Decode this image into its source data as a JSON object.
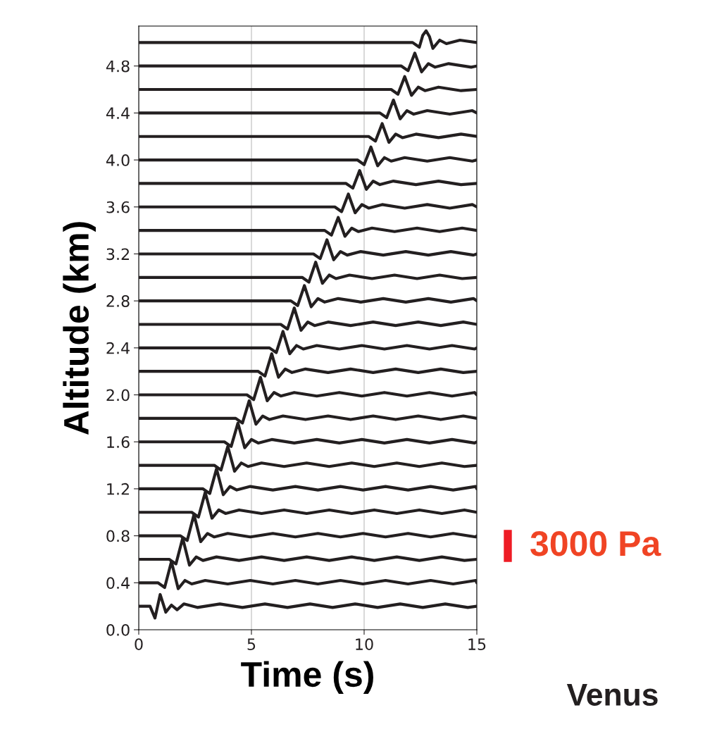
{
  "chart_data": {
    "type": "line",
    "xlabel": "Time (s)",
    "ylabel": "Altitude (km)",
    "xlim": [
      0,
      15
    ],
    "xticks": [
      0,
      5,
      10,
      15
    ],
    "ylim": [
      0,
      5.14
    ],
    "yticks": [
      {
        "value": 0,
        "label": "0.0"
      },
      0.4,
      0.8,
      1.2,
      1.6,
      {
        "value": 2,
        "label": "2.0"
      },
      2.4,
      2.8,
      3.2,
      3.6,
      {
        "value": 4,
        "label": "4.0"
      },
      4.4,
      4.8
    ],
    "grid": "x",
    "legend": false,
    "marker": "none",
    "line_style": "solid",
    "annotations": [
      "3000 Pa",
      "Venus"
    ],
    "series": [
      {
        "color": "#231f20",
        "x": [
          0,
          0.5,
          0.72,
          0.95,
          1.2,
          1.45,
          1.7,
          2.0,
          2.6,
          3.6,
          4.6,
          5.6,
          6.6,
          7.6,
          8.6,
          9.6,
          10.6,
          11.6,
          12.6,
          13.6,
          14.6,
          15
        ],
        "values": [
          0.2,
          0.2,
          0.1,
          0.3,
          0.15,
          0.21,
          0.17,
          0.22,
          0.19,
          0.22,
          0.19,
          0.22,
          0.19,
          0.22,
          0.19,
          0.22,
          0.19,
          0.22,
          0.19,
          0.22,
          0.19,
          0.2
        ]
      },
      {
        "color": "#231f20",
        "x": [
          0,
          0.85,
          1.15,
          1.45,
          1.75,
          2.05,
          2.35,
          2.95,
          3.95,
          4.95,
          5.95,
          6.95,
          7.95,
          8.95,
          9.95,
          10.95,
          11.95,
          12.95,
          13.95,
          14.95,
          15
        ],
        "values": [
          0.4,
          0.4,
          0.36,
          0.58,
          0.35,
          0.42,
          0.39,
          0.42,
          0.39,
          0.42,
          0.39,
          0.42,
          0.39,
          0.42,
          0.39,
          0.42,
          0.39,
          0.42,
          0.39,
          0.42,
          0.4
        ]
      },
      {
        "color": "#231f20",
        "x": [
          0,
          1.35,
          1.65,
          1.95,
          2.25,
          2.55,
          2.85,
          3.45,
          4.45,
          5.45,
          6.45,
          7.45,
          8.45,
          9.45,
          10.45,
          11.45,
          12.45,
          13.45,
          14.45,
          15
        ],
        "values": [
          0.6,
          0.6,
          0.56,
          0.78,
          0.55,
          0.62,
          0.59,
          0.62,
          0.59,
          0.62,
          0.59,
          0.62,
          0.59,
          0.62,
          0.59,
          0.62,
          0.59,
          0.62,
          0.59,
          0.6
        ]
      },
      {
        "color": "#231f20",
        "x": [
          0,
          1.85,
          2.15,
          2.45,
          2.75,
          3.05,
          3.35,
          3.95,
          4.95,
          5.95,
          6.95,
          7.95,
          8.95,
          9.95,
          10.95,
          11.95,
          12.95,
          13.95,
          14.95,
          15
        ],
        "values": [
          0.8,
          0.8,
          0.76,
          0.98,
          0.75,
          0.82,
          0.79,
          0.82,
          0.79,
          0.82,
          0.79,
          0.82,
          0.79,
          0.82,
          0.79,
          0.82,
          0.79,
          0.82,
          0.79,
          0.8
        ]
      },
      {
        "color": "#231f20",
        "x": [
          0,
          2.35,
          2.65,
          2.95,
          3.25,
          3.55,
          3.85,
          4.45,
          5.45,
          6.45,
          7.45,
          8.45,
          9.45,
          10.45,
          11.45,
          12.45,
          13.45,
          14.45,
          15
        ],
        "values": [
          1.0,
          1.0,
          0.96,
          1.17,
          0.95,
          1.02,
          0.99,
          1.02,
          0.99,
          1.02,
          0.99,
          1.02,
          0.99,
          1.02,
          0.99,
          1.02,
          0.99,
          1.02,
          1.0
        ]
      },
      {
        "color": "#231f20",
        "x": [
          0,
          2.85,
          3.15,
          3.45,
          3.75,
          4.05,
          4.35,
          4.95,
          5.95,
          6.95,
          7.95,
          8.95,
          9.95,
          10.95,
          11.95,
          12.95,
          13.95,
          14.95,
          15
        ],
        "values": [
          1.2,
          1.2,
          1.16,
          1.37,
          1.15,
          1.22,
          1.19,
          1.22,
          1.19,
          1.22,
          1.19,
          1.22,
          1.19,
          1.22,
          1.19,
          1.22,
          1.19,
          1.22,
          1.2
        ]
      },
      {
        "color": "#231f20",
        "x": [
          0,
          3.35,
          3.65,
          3.95,
          4.25,
          4.55,
          4.85,
          5.45,
          6.45,
          7.45,
          8.45,
          9.45,
          10.45,
          11.45,
          12.45,
          13.45,
          14.45,
          15
        ],
        "values": [
          1.4,
          1.4,
          1.36,
          1.56,
          1.35,
          1.42,
          1.39,
          1.42,
          1.39,
          1.42,
          1.39,
          1.42,
          1.39,
          1.42,
          1.39,
          1.42,
          1.39,
          1.4
        ]
      },
      {
        "color": "#231f20",
        "x": [
          0,
          3.8,
          4.1,
          4.4,
          4.7,
          5.0,
          5.3,
          5.9,
          6.9,
          7.9,
          8.9,
          9.9,
          10.9,
          11.9,
          12.9,
          13.9,
          14.9,
          15
        ],
        "values": [
          1.6,
          1.6,
          1.56,
          1.76,
          1.55,
          1.62,
          1.59,
          1.62,
          1.59,
          1.62,
          1.59,
          1.62,
          1.59,
          1.62,
          1.59,
          1.62,
          1.59,
          1.6
        ]
      },
      {
        "color": "#231f20",
        "x": [
          0,
          4.3,
          4.6,
          4.9,
          5.2,
          5.5,
          5.8,
          6.4,
          7.4,
          8.4,
          9.4,
          10.4,
          11.4,
          12.4,
          13.4,
          14.4,
          15
        ],
        "values": [
          1.8,
          1.8,
          1.76,
          1.95,
          1.75,
          1.82,
          1.79,
          1.82,
          1.79,
          1.82,
          1.79,
          1.82,
          1.79,
          1.82,
          1.79,
          1.82,
          1.8
        ]
      },
      {
        "color": "#231f20",
        "x": [
          0,
          4.8,
          5.1,
          5.4,
          5.7,
          6.0,
          6.3,
          6.9,
          7.9,
          8.9,
          9.9,
          10.9,
          11.9,
          12.9,
          13.9,
          14.9,
          15
        ],
        "values": [
          2.0,
          2.0,
          1.96,
          2.15,
          1.95,
          2.02,
          1.99,
          2.02,
          1.99,
          2.02,
          1.99,
          2.02,
          1.99,
          2.02,
          1.99,
          2.02,
          2.0
        ]
      },
      {
        "color": "#231f20",
        "x": [
          0,
          5.3,
          5.6,
          5.9,
          6.2,
          6.5,
          6.8,
          7.4,
          8.4,
          9.4,
          10.4,
          11.4,
          12.4,
          13.4,
          14.4,
          15
        ],
        "values": [
          2.2,
          2.2,
          2.16,
          2.35,
          2.15,
          2.22,
          2.19,
          2.22,
          2.19,
          2.22,
          2.19,
          2.22,
          2.19,
          2.22,
          2.19,
          2.2
        ]
      },
      {
        "color": "#231f20",
        "x": [
          0,
          5.8,
          6.1,
          6.4,
          6.7,
          7.0,
          7.3,
          7.9,
          8.9,
          9.9,
          10.9,
          11.9,
          12.9,
          13.9,
          14.9,
          15
        ],
        "values": [
          2.4,
          2.4,
          2.36,
          2.54,
          2.35,
          2.42,
          2.39,
          2.42,
          2.39,
          2.42,
          2.39,
          2.42,
          2.39,
          2.42,
          2.39,
          2.4
        ]
      },
      {
        "color": "#231f20",
        "x": [
          0,
          6.3,
          6.6,
          6.9,
          7.2,
          7.5,
          7.8,
          8.4,
          9.4,
          10.4,
          11.4,
          12.4,
          13.4,
          14.4,
          15
        ],
        "values": [
          2.6,
          2.6,
          2.56,
          2.74,
          2.55,
          2.62,
          2.59,
          2.62,
          2.59,
          2.62,
          2.59,
          2.62,
          2.59,
          2.62,
          2.6
        ]
      },
      {
        "color": "#231f20",
        "x": [
          0,
          6.75,
          7.05,
          7.35,
          7.65,
          7.95,
          8.25,
          8.85,
          9.85,
          10.85,
          11.85,
          12.85,
          13.85,
          14.85,
          15
        ],
        "values": [
          2.8,
          2.8,
          2.76,
          2.93,
          2.75,
          2.82,
          2.79,
          2.82,
          2.79,
          2.82,
          2.79,
          2.82,
          2.79,
          2.82,
          2.8
        ]
      },
      {
        "color": "#231f20",
        "x": [
          0,
          7.25,
          7.55,
          7.85,
          8.15,
          8.45,
          8.75,
          9.35,
          10.35,
          11.35,
          12.35,
          13.35,
          14.35,
          15
        ],
        "values": [
          3.0,
          3.0,
          2.96,
          3.13,
          2.95,
          3.02,
          2.99,
          3.02,
          2.99,
          3.02,
          2.99,
          3.02,
          2.99,
          3.0
        ]
      },
      {
        "color": "#231f20",
        "x": [
          0,
          7.75,
          8.05,
          8.35,
          8.65,
          8.95,
          9.25,
          9.85,
          10.85,
          11.85,
          12.85,
          13.85,
          14.85,
          15
        ],
        "values": [
          3.2,
          3.2,
          3.16,
          3.32,
          3.15,
          3.22,
          3.19,
          3.22,
          3.19,
          3.22,
          3.19,
          3.22,
          3.19,
          3.2
        ]
      },
      {
        "color": "#231f20",
        "x": [
          0,
          8.25,
          8.55,
          8.85,
          9.15,
          9.45,
          9.75,
          10.35,
          11.35,
          12.35,
          13.35,
          14.35,
          15
        ],
        "values": [
          3.4,
          3.4,
          3.36,
          3.51,
          3.35,
          3.42,
          3.39,
          3.42,
          3.39,
          3.42,
          3.39,
          3.42,
          3.4
        ]
      },
      {
        "color": "#231f20",
        "x": [
          0,
          8.7,
          9.0,
          9.3,
          9.6,
          9.9,
          10.2,
          10.8,
          11.8,
          12.8,
          13.8,
          14.8,
          15
        ],
        "values": [
          3.6,
          3.6,
          3.56,
          3.71,
          3.55,
          3.62,
          3.59,
          3.62,
          3.59,
          3.62,
          3.59,
          3.62,
          3.6
        ]
      },
      {
        "color": "#231f20",
        "x": [
          0,
          9.2,
          9.5,
          9.8,
          10.1,
          10.4,
          10.7,
          11.3,
          12.3,
          13.3,
          14.3,
          15
        ],
        "values": [
          3.8,
          3.8,
          3.76,
          3.91,
          3.75,
          3.82,
          3.79,
          3.82,
          3.79,
          3.82,
          3.79,
          3.8
        ]
      },
      {
        "color": "#231f20",
        "x": [
          0,
          9.7,
          10.0,
          10.3,
          10.6,
          10.9,
          11.2,
          11.8,
          12.8,
          13.8,
          14.8,
          15
        ],
        "values": [
          4.0,
          4.0,
          3.96,
          4.11,
          3.95,
          4.02,
          3.99,
          4.02,
          3.99,
          4.02,
          3.99,
          4.0
        ]
      },
      {
        "color": "#231f20",
        "x": [
          0,
          10.2,
          10.5,
          10.8,
          11.1,
          11.4,
          11.7,
          12.3,
          13.3,
          14.3,
          15
        ],
        "values": [
          4.2,
          4.2,
          4.16,
          4.31,
          4.15,
          4.22,
          4.19,
          4.22,
          4.19,
          4.22,
          4.2
        ]
      },
      {
        "color": "#231f20",
        "x": [
          0,
          10.7,
          11.0,
          11.3,
          11.6,
          11.9,
          12.2,
          12.8,
          13.8,
          14.8,
          15
        ],
        "values": [
          4.4,
          4.4,
          4.36,
          4.51,
          4.35,
          4.42,
          4.39,
          4.42,
          4.39,
          4.42,
          4.4
        ]
      },
      {
        "color": "#231f20",
        "x": [
          0,
          11.2,
          11.5,
          11.8,
          12.1,
          12.4,
          12.7,
          13.3,
          14.3,
          15
        ],
        "values": [
          4.6,
          4.6,
          4.56,
          4.71,
          4.55,
          4.62,
          4.59,
          4.62,
          4.59,
          4.6
        ]
      },
      {
        "color": "#231f20",
        "x": [
          0,
          11.65,
          11.95,
          12.25,
          12.55,
          12.85,
          13.15,
          13.75,
          14.75,
          15
        ],
        "values": [
          4.8,
          4.8,
          4.76,
          4.91,
          4.75,
          4.82,
          4.79,
          4.82,
          4.79,
          4.8
        ]
      },
      {
        "color": "#231f20",
        "x": [
          0,
          12.15,
          12.45,
          12.6,
          12.75,
          12.9,
          13.05,
          13.35,
          13.65,
          14.25,
          15
        ],
        "values": [
          5.0,
          5.0,
          4.96,
          5.06,
          5.1,
          5.05,
          4.95,
          5.02,
          4.99,
          5.02,
          5.0
        ]
      }
    ]
  }
}
